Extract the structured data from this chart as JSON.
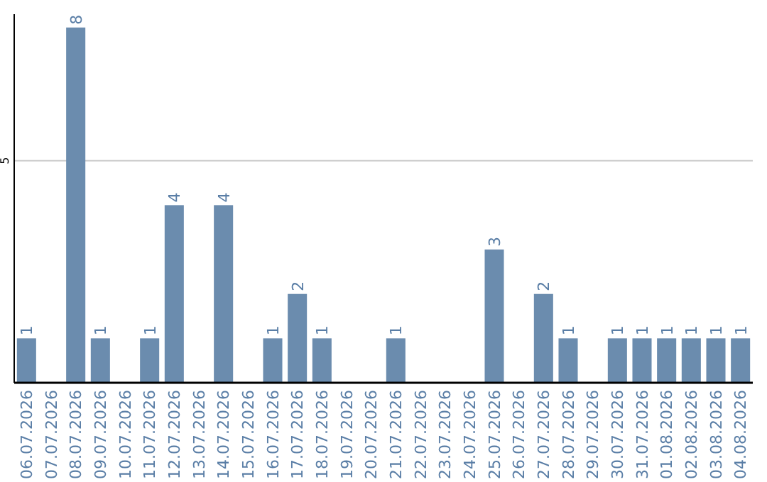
{
  "chart_data": {
    "type": "bar",
    "categories": [
      "06.07.2026",
      "07.07.2026",
      "08.07.2026",
      "09.07.2026",
      "10.07.2026",
      "11.07.2026",
      "12.07.2026",
      "13.07.2026",
      "14.07.2026",
      "15.07.2026",
      "16.07.2026",
      "17.07.2026",
      "18.07.2026",
      "19.07.2026",
      "20.07.2026",
      "21.07.2026",
      "22.07.2026",
      "23.07.2026",
      "24.07.2026",
      "25.07.2026",
      "26.07.2026",
      "27.07.2026",
      "28.07.2026",
      "29.07.2026",
      "30.07.2026",
      "31.07.2026",
      "01.08.2026",
      "02.08.2026",
      "03.08.2026",
      "04.08.2026"
    ],
    "values": [
      1,
      null,
      8,
      1,
      null,
      1,
      4,
      null,
      4,
      null,
      1,
      2,
      1,
      null,
      null,
      1,
      null,
      null,
      null,
      3,
      null,
      2,
      1,
      null,
      1,
      1,
      1,
      1,
      1,
      1
    ],
    "color": "#6b8cae",
    "ylim": [
      0,
      8.3
    ],
    "yticks": [
      5
    ],
    "grid": "y",
    "data_labels": true
  }
}
